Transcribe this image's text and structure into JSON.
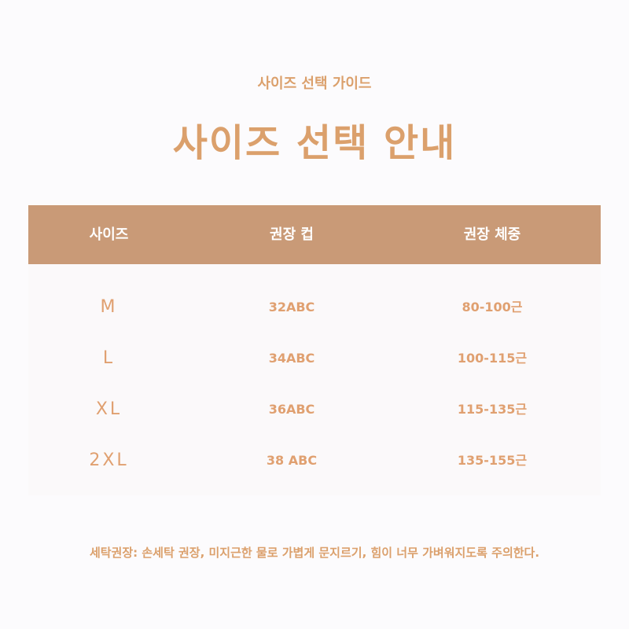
{
  "subtitle": "사이즈 선택 가이드",
  "title": "사이즈 선택 안내",
  "table": {
    "headers": [
      "사이즈",
      "권장 컵",
      "권장 체중"
    ],
    "rows": [
      {
        "size": "M",
        "cup": "32ABC",
        "weight": "80-100근"
      },
      {
        "size": "L",
        "cup": "34ABC",
        "weight": "100-115근"
      },
      {
        "size": "XL",
        "cup": "36ABC",
        "weight": "115-135근"
      },
      {
        "size": "2XL",
        "cup": "38 ABC",
        "weight": "135-155근"
      }
    ]
  },
  "note": "세탁권장: 손세탁 권장, 미지근한 물로 가볍게 문지르기, 힘이 너무 가벼워지도록 주의한다.",
  "colors": {
    "accent": "#dba06c",
    "header_bg": "#c99a77"
  }
}
